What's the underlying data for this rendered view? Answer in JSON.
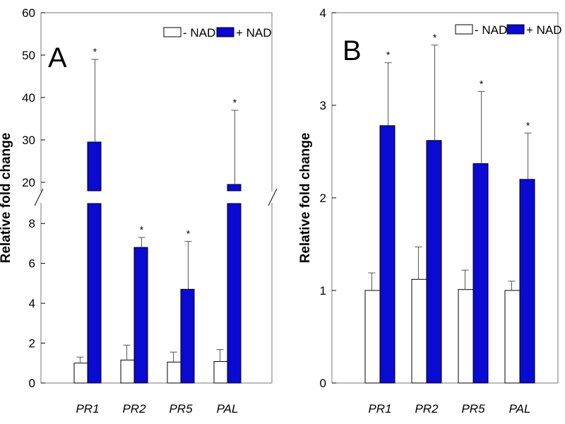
{
  "colors": {
    "minus_nad": "#ffffff",
    "plus_nad": "#0a0ad2",
    "outline": "#000000"
  },
  "chart_data": [
    {
      "panel": "A",
      "type": "bar",
      "broken_axis": true,
      "categories": [
        "PR1",
        "PR2",
        "PR5",
        "PAL"
      ],
      "series": [
        {
          "name": "- NAD",
          "values": [
            1.0,
            1.15,
            1.05,
            1.08
          ],
          "errors": [
            0.3,
            0.75,
            0.5,
            0.6
          ]
        },
        {
          "name": "+ NAD",
          "values": [
            29.5,
            6.8,
            4.7,
            19.5
          ],
          "errors": [
            19.5,
            0.5,
            2.4,
            17.5
          ]
        }
      ],
      "significance": [
        "*",
        "*",
        "*",
        "*"
      ],
      "legend": [
        "- NAD",
        "+ NAD"
      ],
      "ylabel": "Relative fold change",
      "lower_range": [
        0,
        9
      ],
      "upper_range": [
        18,
        60
      ],
      "lower_ticks": [
        "0",
        "2",
        "4",
        "6",
        "8"
      ],
      "upper_ticks": [
        "20",
        "30",
        "40",
        "50",
        "60"
      ]
    },
    {
      "panel": "B",
      "type": "bar",
      "broken_axis": false,
      "categories": [
        "PR1",
        "PR2",
        "PR5",
        "PAL"
      ],
      "series": [
        {
          "name": "- NAD",
          "values": [
            1.0,
            1.12,
            1.01,
            1.0
          ],
          "errors": [
            0.19,
            0.35,
            0.21,
            0.1
          ]
        },
        {
          "name": "+ NAD",
          "values": [
            2.78,
            2.62,
            2.37,
            2.2
          ],
          "errors": [
            0.68,
            1.03,
            0.78,
            0.5
          ]
        }
      ],
      "significance": [
        "*",
        "*",
        "*",
        "*"
      ],
      "legend": [
        "- NAD",
        "+ NAD"
      ],
      "ylabel": "Relative fold change",
      "ylim": [
        0,
        4
      ],
      "yticks": [
        "0",
        "1",
        "2",
        "3",
        "4"
      ]
    }
  ]
}
